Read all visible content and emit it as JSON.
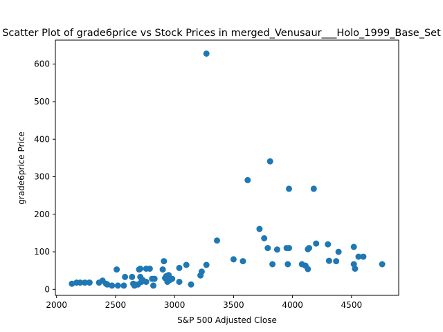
{
  "chart_data": {
    "type": "scatter",
    "title": "Scatter Plot of grade6price vs Stock Prices in merged_Venusaur___Holo_1999_Base_Set",
    "xlabel": "S&P 500 Adjusted Close",
    "ylabel": "grade6price Price",
    "xlim": [
      1990,
      4900
    ],
    "ylim": [
      -16,
      664
    ],
    "xticks": [
      2000,
      2500,
      3000,
      3500,
      4000,
      4500
    ],
    "yticks": [
      0,
      100,
      200,
      300,
      400,
      500,
      600
    ],
    "xtick_labels": [
      "2000",
      "2500",
      "3000",
      "3500",
      "4000",
      "4500"
    ],
    "ytick_labels": [
      "0",
      "100",
      "200",
      "300",
      "400",
      "500",
      "600"
    ],
    "grid": false,
    "marker_color": "#1f77b4",
    "x": [
      2130,
      2170,
      2200,
      2240,
      2280,
      2360,
      2390,
      2420,
      2430,
      2470,
      2510,
      2520,
      2570,
      2580,
      2640,
      2650,
      2660,
      2670,
      2690,
      2700,
      2710,
      2710,
      2720,
      2730,
      2760,
      2760,
      2790,
      2810,
      2820,
      2830,
      2900,
      2910,
      2920,
      2930,
      2940,
      2950,
      2960,
      2980,
      3040,
      3040,
      3100,
      3140,
      3220,
      3230,
      3270,
      3270,
      3360,
      3500,
      3580,
      3620,
      3720,
      3760,
      3790,
      3810,
      3830,
      3870,
      3950,
      3960,
      3970,
      3970,
      4080,
      4110,
      4130,
      4130,
      4140,
      4180,
      4200,
      4300,
      4310,
      4370,
      4390,
      4520,
      4520,
      4530,
      4560,
      4600,
      4760
    ],
    "y": [
      15,
      18,
      18,
      18,
      18,
      18,
      23,
      15,
      13,
      10,
      53,
      10,
      10,
      33,
      33,
      15,
      10,
      12,
      13,
      53,
      33,
      55,
      20,
      25,
      55,
      20,
      55,
      28,
      10,
      28,
      53,
      75,
      30,
      35,
      20,
      38,
      25,
      28,
      20,
      57,
      65,
      13,
      37,
      47,
      628,
      65,
      130,
      80,
      75,
      291,
      161,
      136,
      110,
      341,
      67,
      106,
      110,
      67,
      268,
      110,
      67,
      63,
      107,
      54,
      110,
      268,
      122,
      120,
      76,
      75,
      100,
      113,
      67,
      55,
      87,
      87,
      67
    ]
  }
}
